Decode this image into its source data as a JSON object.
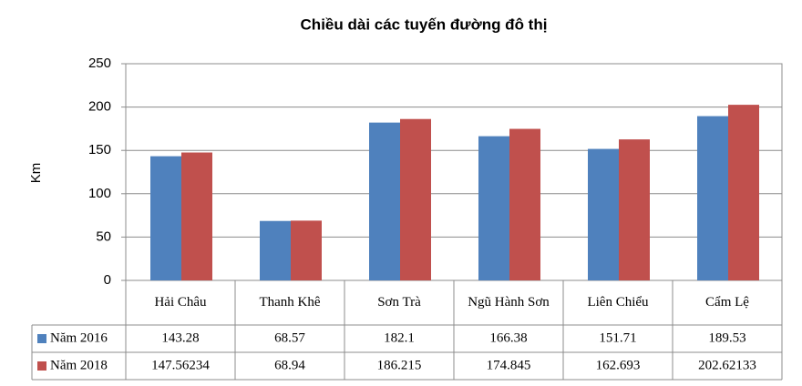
{
  "chart_data": {
    "type": "bar",
    "title": "Chiều dài các tuyến đường đô thị",
    "y_label": "Km",
    "categories": [
      "Hải Châu",
      "Thanh Khê",
      "Sơn Trà",
      "Ngũ Hành Sơn",
      "Liên Chiểu",
      "Cẩm Lệ"
    ],
    "series": [
      {
        "name": "Năm 2016",
        "color": "#4f81bd",
        "values": [
          143.28,
          68.57,
          182.1,
          166.38,
          151.71,
          189.53
        ]
      },
      {
        "name": "Năm 2018",
        "color": "#c0504d",
        "values": [
          147.56234,
          68.94,
          186.215,
          174.845,
          162.693,
          202.62133
        ]
      }
    ],
    "ylim": [
      0,
      250
    ],
    "yticks": [
      0,
      50,
      100,
      150,
      200,
      250
    ],
    "grid": true
  }
}
